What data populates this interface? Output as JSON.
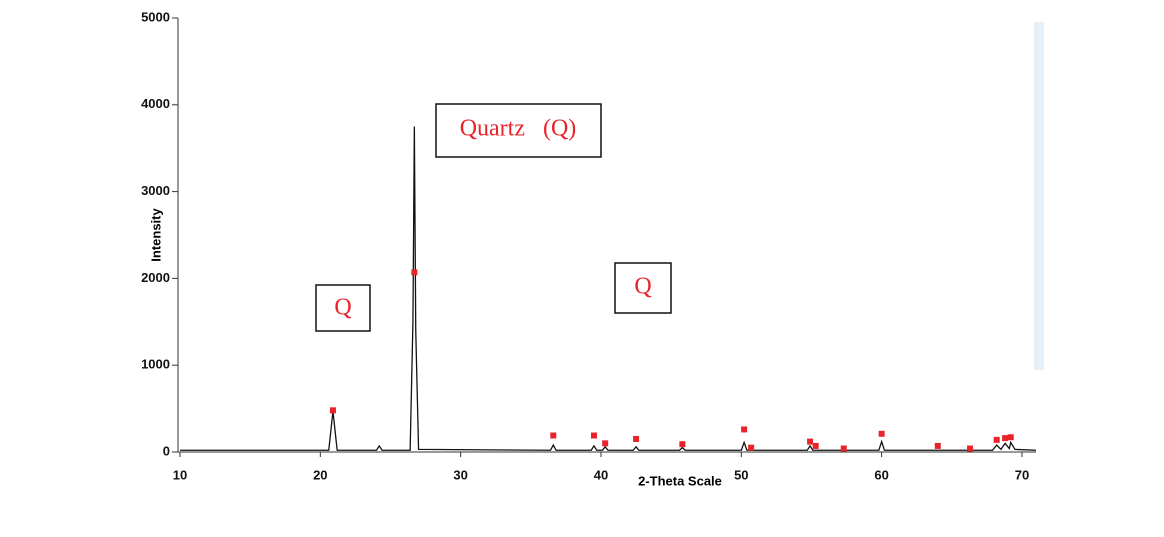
{
  "chart_data": {
    "type": "line",
    "x_label": "2-Theta Scale",
    "y_label": "Intensity",
    "xlim": [
      10,
      71
    ],
    "ylim": [
      0,
      5000
    ],
    "xticks": [
      10,
      20,
      30,
      40,
      50,
      60,
      70
    ],
    "yticks": [
      0,
      1000,
      2000,
      3000,
      4000,
      5000
    ],
    "grid": false,
    "series": [
      {
        "color": "#111111",
        "marker": "none",
        "x": [
          10,
          20.6,
          20.9,
          21.2,
          24.0,
          24.2,
          24.4,
          26.4,
          26.6,
          26.7,
          26.8,
          27.0,
          36.4,
          36.6,
          36.8,
          39.3,
          39.5,
          39.7,
          40.1,
          40.3,
          40.5,
          42.3,
          42.5,
          42.7,
          45.6,
          45.8,
          46.0,
          50.0,
          50.2,
          50.4,
          54.7,
          54.9,
          55.1,
          59.8,
          60.0,
          60.2,
          67.9,
          68.2,
          68.5,
          68.8,
          69.1,
          69.2,
          69.5,
          71
        ],
        "values": [
          20,
          20,
          470,
          20,
          20,
          70,
          20,
          20,
          1500,
          3750,
          1400,
          30,
          20,
          80,
          20,
          20,
          70,
          20,
          20,
          60,
          20,
          20,
          60,
          20,
          20,
          50,
          20,
          20,
          110,
          20,
          20,
          70,
          20,
          20,
          120,
          20,
          20,
          80,
          30,
          100,
          40,
          110,
          30,
          20
        ]
      },
      {
        "color": "#e8232a",
        "marker": "square",
        "x": [
          20.9,
          26.7,
          36.6,
          39.5,
          40.3,
          42.5,
          45.8,
          50.2,
          50.7,
          54.9,
          55.3,
          57.3,
          60.0,
          64.0,
          66.3,
          68.2,
          68.8,
          69.2
        ],
        "values": [
          480,
          2070,
          190,
          190,
          100,
          150,
          90,
          260,
          50,
          120,
          70,
          40,
          210,
          70,
          40,
          140,
          160,
          170
        ]
      }
    ],
    "annotations": [
      "Q",
      "Quartz   (Q)",
      "Q"
    ]
  }
}
